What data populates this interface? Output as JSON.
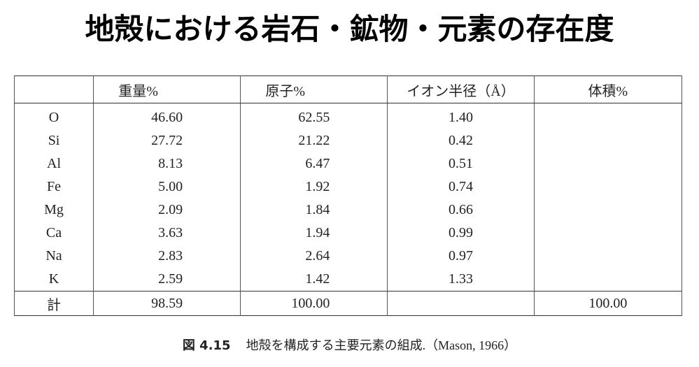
{
  "title": "地殻における岩石・鉱物・元素の存在度",
  "table": {
    "header": [
      null,
      "重量%",
      "原子%",
      "イオン半径（Å）",
      "体積%"
    ],
    "rows": [
      [
        "O",
        "46.60",
        "62.55",
        "1.40",
        null
      ],
      [
        "Si",
        "27.72",
        "21.22",
        "0.42",
        null
      ],
      [
        "Al",
        "8.13",
        "6.47",
        "0.51",
        null
      ],
      [
        "Fe",
        "5.00",
        "1.92",
        "0.74",
        null
      ],
      [
        "Mg",
        "2.09",
        "1.84",
        "0.66",
        null
      ],
      [
        "Ca",
        "3.63",
        "1.94",
        "0.99",
        null
      ],
      [
        "Na",
        "2.83",
        "2.64",
        "0.97",
        null
      ],
      [
        "K",
        "2.59",
        "1.42",
        "1.33",
        null
      ]
    ],
    "total": [
      "計",
      "98.59",
      "100.00",
      null,
      "100.00"
    ]
  },
  "caption": {
    "label": "図 4.15",
    "text": "地殻を構成する主要元素の組成.",
    "source": "（Mason, 1966）"
  }
}
